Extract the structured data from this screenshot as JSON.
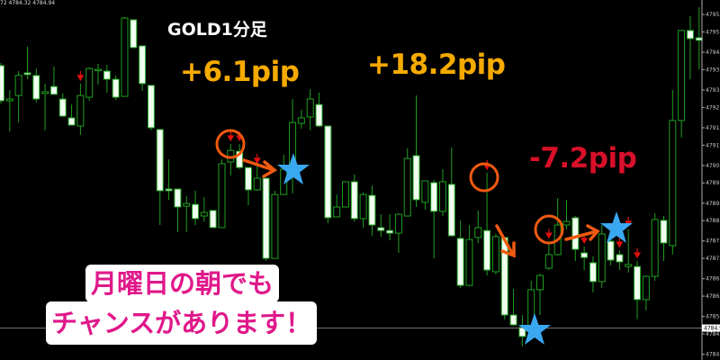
{
  "header": {
    "ohlc_readout": "72 4784.32 4784.94"
  },
  "annotations": {
    "title": "GOLD1分足",
    "trades": [
      {
        "label": "+6.1pip",
        "color": "#f5aa00"
      },
      {
        "label": "+18.2pip",
        "color": "#f5aa00"
      },
      {
        "label": "-7.2pip",
        "color": "#d8102a"
      }
    ],
    "message_line1": "月曜日の朝でも",
    "message_line2": "チャンスがあります！",
    "message_color": "#e0188a",
    "marker_color": "#f05a10",
    "star_color": "#3aa8f0"
  },
  "chart_data": {
    "type": "candlestick",
    "symbol_timeframe": "GOLD1分足",
    "bull_color": "#1fa01f",
    "bear_color": "#f0fff0",
    "signal_color": "#e01010",
    "ylim": [
      4784.0,
      4796.2
    ],
    "y_ticks": [
      "4795.7",
      "4795.1",
      "4794.4",
      "4793.8",
      "4793.1",
      "4792.5",
      "4791.8",
      "4791.2",
      "4790.5",
      "4789.9",
      "4789.2",
      "4788.6",
      "4787.9",
      "4787.3",
      "4786.6",
      "4786.0",
      "4785.3",
      "4784.7",
      "4784.0"
    ],
    "current_price": "4784.9",
    "ohlc": [
      [
        4793.94,
        4794.03,
        4792.64,
        4792.73
      ],
      [
        4792.73,
        4793.1,
        4791.67,
        4792.79
      ],
      [
        4792.91,
        4793.75,
        4791.98,
        4793.6
      ],
      [
        4793.69,
        4794.59,
        4793.47,
        4793.63
      ],
      [
        4793.6,
        4793.84,
        4792.67,
        4792.79
      ],
      [
        4792.98,
        4793.32,
        4791.71,
        4793.04
      ],
      [
        4793.22,
        4793.91,
        4792.95,
        4792.95
      ],
      [
        4792.79,
        4792.98,
        4792.17,
        4792.2
      ],
      [
        4792.14,
        4792.6,
        4791.89,
        4791.89
      ],
      [
        4791.86,
        4793.32,
        4791.55,
        4792.91
      ],
      [
        4792.85,
        4793.88,
        4792.73,
        4793.84
      ],
      [
        4793.78,
        4794.0,
        4793.29,
        4793.81
      ],
      [
        4793.75,
        4793.97,
        4793.01,
        4793.47
      ],
      [
        4793.47,
        4793.6,
        4792.76,
        4792.85
      ],
      [
        4792.88,
        4795.61,
        4792.88,
        4795.58
      ],
      [
        4795.52,
        4795.52,
        4794.56,
        4794.56
      ],
      [
        4794.62,
        4794.62,
        4793.07,
        4793.32
      ],
      [
        4793.26,
        4793.26,
        4791.71,
        4791.8
      ],
      [
        4791.74,
        4791.74,
        4788.45,
        4789.63
      ],
      [
        4789.69,
        4790.71,
        4789.32,
        4789.63
      ],
      [
        4789.69,
        4789.69,
        4788.2,
        4789.07
      ],
      [
        4789.1,
        4789.44,
        4788.2,
        4789.19
      ],
      [
        4789.16,
        4789.63,
        4788.45,
        4788.67
      ],
      [
        4788.76,
        4789.41,
        4788.57,
        4788.88
      ],
      [
        4788.95,
        4788.95,
        4788.36,
        4788.36
      ],
      [
        4788.36,
        4790.71,
        4788.36,
        4790.56
      ],
      [
        4790.62,
        4791.24,
        4790.16,
        4791.02
      ],
      [
        4790.99,
        4791.24,
        4790.37,
        4790.43
      ],
      [
        4790.43,
        4790.43,
        4789.13,
        4789.66
      ],
      [
        4789.66,
        4790.47,
        4789.63,
        4790.06
      ],
      [
        4790.06,
        4790.06,
        4787.21,
        4787.3
      ],
      [
        4787.3,
        4789.63,
        4787.3,
        4789.5
      ],
      [
        4789.5,
        4790.87,
        4789.5,
        4790.37
      ],
      [
        4790.16,
        4792.79,
        4789.54,
        4791.98
      ],
      [
        4791.95,
        4792.42,
        4791.77,
        4792.14
      ],
      [
        4792.17,
        4793.13,
        4791.71,
        4792.79
      ],
      [
        4792.6,
        4793.01,
        4791.83,
        4791.86
      ],
      [
        4791.86,
        4791.86,
        4788.51,
        4788.7
      ],
      [
        4788.73,
        4789.5,
        4788.73,
        4789.07
      ],
      [
        4789.07,
        4789.94,
        4789.07,
        4789.94
      ],
      [
        4789.94,
        4790.19,
        4788.57,
        4788.67
      ],
      [
        4788.67,
        4789.57,
        4788.36,
        4789.5
      ],
      [
        4789.47,
        4789.81,
        4788.08,
        4788.45
      ],
      [
        4788.36,
        4788.82,
        4788.05,
        4788.26
      ],
      [
        4788.26,
        4788.82,
        4787.92,
        4788.17
      ],
      [
        4788.17,
        4788.85,
        4787.49,
        4788.82
      ],
      [
        4788.76,
        4791.09,
        4788.76,
        4790.74
      ],
      [
        4790.84,
        4792.91,
        4789.07,
        4789.32
      ],
      [
        4789.23,
        4789.97,
        4788.98,
        4789.97
      ],
      [
        4789.91,
        4790.0,
        4787.3,
        4788.92
      ],
      [
        4788.92,
        4790.37,
        4788.76,
        4789.94
      ],
      [
        4789.85,
        4791.12,
        4788.05,
        4788.08
      ],
      [
        4787.99,
        4788.61,
        4786.28,
        4786.37
      ],
      [
        4786.37,
        4788.45,
        4786.34,
        4787.95
      ],
      [
        4788.02,
        4788.95,
        4787.83,
        4788.36
      ],
      [
        4788.26,
        4790.25,
        4786.71,
        4786.9
      ],
      [
        4786.84,
        4788.14,
        4786.75,
        4788.05
      ],
      [
        4788.02,
        4788.02,
        4785.2,
        4785.35
      ],
      [
        4785.35,
        4786.25,
        4784.98,
        4785.01
      ],
      [
        4784.92,
        4785.35,
        4784.27,
        4784.61
      ],
      [
        4784.89,
        4786.53,
        4784.79,
        4786.22
      ],
      [
        4786.22,
        4786.78,
        4785.35,
        4786.71
      ],
      [
        4786.96,
        4787.89,
        4786.9,
        4787.43
      ],
      [
        4787.43,
        4789.38,
        4787.4,
        4788.45
      ],
      [
        4788.45,
        4789.32,
        4788.3,
        4788.57
      ],
      [
        4788.7,
        4788.76,
        4787.21,
        4787.61
      ],
      [
        4787.49,
        4787.71,
        4786.9,
        4787.33
      ],
      [
        4787.15,
        4787.37,
        4786.13,
        4786.5
      ],
      [
        4786.5,
        4788.45,
        4786.28,
        4788.14
      ],
      [
        4787.89,
        4788.23,
        4787.06,
        4787.24
      ],
      [
        4787.43,
        4787.58,
        4786.9,
        4787.18
      ],
      [
        4787.02,
        4788.3,
        4786.81,
        4787.09
      ],
      [
        4787.02,
        4787.21,
        4785.2,
        4785.88
      ],
      [
        4785.88,
        4786.71,
        4785.51,
        4786.68
      ],
      [
        4786.68,
        4788.85,
        4786.53,
        4788.64
      ],
      [
        4788.61,
        4788.76,
        4787.21,
        4787.83
      ],
      [
        4787.74,
        4793.1,
        4787.43,
        4792.05
      ],
      [
        4792.05,
        4795.15,
        4791.46,
        4795.15
      ],
      [
        4795.15,
        4795.64,
        4793.47,
        4794.87
      ],
      [
        4794.9,
        4795.95,
        4793.81,
        4794.81
      ]
    ],
    "sell_signal_candles": [
      9,
      26,
      27,
      29,
      55,
      62,
      66,
      70,
      71,
      72
    ]
  }
}
